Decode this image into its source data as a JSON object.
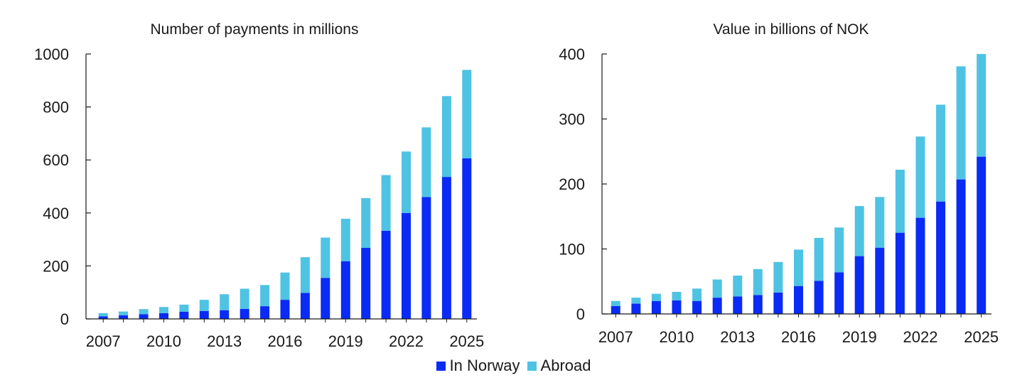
{
  "colors": {
    "in_norway": "#0a2bf5",
    "abroad": "#4fc3e3",
    "axis": "#1a1a1a",
    "text": "#1a1a1a"
  },
  "legend": {
    "in_norway": "In Norway",
    "abroad": "Abroad",
    "position": "bottom-center"
  },
  "chart_data": [
    {
      "type": "bar",
      "stacked": true,
      "title": "Number of payments in millions",
      "xlabel": "",
      "ylabel": "",
      "ylim": [
        0,
        1000
      ],
      "yticks": [
        0,
        200,
        400,
        600,
        800,
        1000
      ],
      "xtick_labels": [
        "2007",
        "2010",
        "2013",
        "2016",
        "2019",
        "2022",
        "2025"
      ],
      "categories": [
        "2007",
        "2008",
        "2009",
        "2010",
        "2011",
        "2012",
        "2013",
        "2014",
        "2015",
        "2016",
        "2017",
        "2018",
        "2019",
        "2020",
        "2021",
        "2022",
        "2023",
        "2024",
        "2025"
      ],
      "series": [
        {
          "name": "In Norway",
          "color": "#0a2bf5",
          "values": [
            10,
            14,
            18,
            22,
            27,
            30,
            33,
            38,
            48,
            72,
            98,
            155,
            218,
            268,
            333,
            400,
            460,
            536,
            606
          ]
        },
        {
          "name": "Abroad",
          "color": "#4fc3e3",
          "values": [
            12,
            14,
            19,
            23,
            27,
            42,
            60,
            76,
            80,
            103,
            135,
            152,
            160,
            188,
            210,
            232,
            263,
            305,
            334
          ]
        }
      ],
      "grid": false
    },
    {
      "type": "bar",
      "stacked": true,
      "title": "Value in billions of NOK",
      "xlabel": "",
      "ylabel": "",
      "ylim": [
        0,
        400
      ],
      "yticks": [
        0,
        100,
        200,
        300,
        400
      ],
      "xtick_labels": [
        "2007",
        "2010",
        "2013",
        "2016",
        "2019",
        "2022",
        "2025"
      ],
      "categories": [
        "2007",
        "2008",
        "2009",
        "2010",
        "2011",
        "2012",
        "2013",
        "2014",
        "2015",
        "2016",
        "2017",
        "2018",
        "2019",
        "2020",
        "2021",
        "2022",
        "2023",
        "2024",
        "2025"
      ],
      "series": [
        {
          "name": "In Norway",
          "color": "#0a2bf5",
          "values": [
            12,
            16,
            20,
            21,
            20,
            25,
            27,
            29,
            33,
            43,
            51,
            64,
            89,
            102,
            125,
            148,
            173,
            207,
            242
          ]
        },
        {
          "name": "Abroad",
          "color": "#4fc3e3",
          "values": [
            8,
            9,
            11,
            13,
            19,
            28,
            32,
            40,
            47,
            56,
            66,
            69,
            77,
            78,
            97,
            125,
            149,
            174,
            158
          ]
        }
      ],
      "grid": false
    }
  ]
}
